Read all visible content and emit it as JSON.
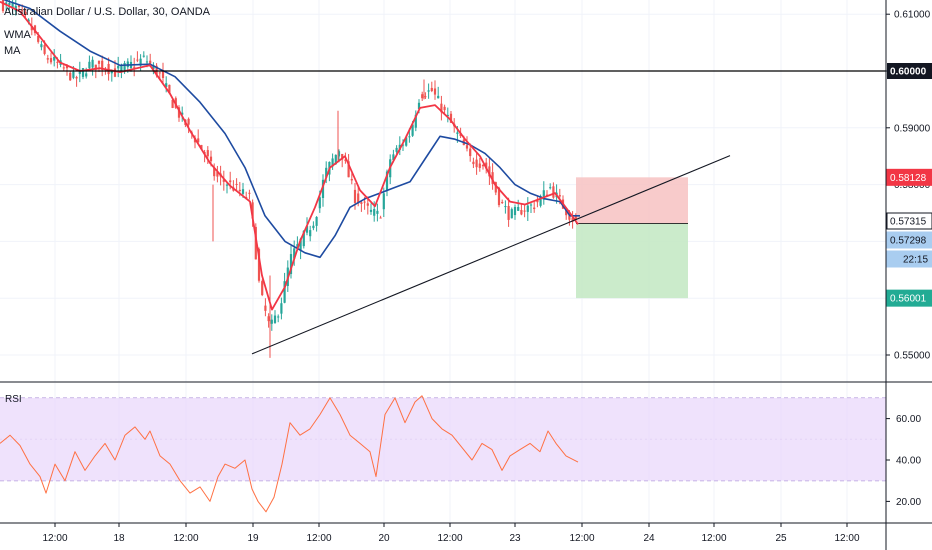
{
  "header": {
    "title": "Australian Dollar / U.S. Dollar, 30, OANDA",
    "indicator_1": "WMA",
    "indicator_2": "MA"
  },
  "rsi": {
    "label": "RSI"
  },
  "colors": {
    "bull": "#26a69a",
    "bear": "#ef5350",
    "wma": "#f23645",
    "ma": "#1e4ba1",
    "rsi_line": "#ff7043",
    "rsi_band": "#e9d8fb",
    "stop_zone": "#f7c2c2",
    "target_zone": "#c5e9c5",
    "axis_text": "#131722"
  },
  "chart_data": [
    {
      "type": "candlestick",
      "title": "Australian Dollar / U.S. Dollar, 30, OANDA",
      "price_axis": {
        "ylim": [
          0.5455,
          0.6125
        ],
        "ticks": [
          "0.61000",
          "0.60000",
          "0.59000",
          "0.58000",
          "0.57000",
          "0.56000",
          "0.55000"
        ]
      },
      "time_axis": {
        "ticks": [
          "12:00",
          "18",
          "12:00",
          "19",
          "12:00",
          "20",
          "12:00",
          "23",
          "12:00",
          "24",
          "12:00",
          "25",
          "12:00"
        ]
      },
      "horizontal_line": {
        "price": 0.6,
        "label": "0.60000"
      },
      "price_labels": [
        {
          "text": "0.58128",
          "price": 0.58128,
          "color": "#f23645"
        },
        {
          "text": "0.57315",
          "price": 0.57315,
          "color": "#131722"
        },
        {
          "text": "0.57298",
          "price": 0.57298,
          "color": "#4a90d9"
        },
        {
          "text": "22:15",
          "price": 0.5701,
          "color": "#4a90d9"
        },
        {
          "text": "0.56001",
          "price": 0.56001,
          "color": "#22ab94"
        }
      ],
      "trendline": {
        "from": {
          "x": 252,
          "price": 0.5502
        },
        "to": {
          "x": 730,
          "price": 0.5851
        }
      },
      "position": {
        "kind": "short",
        "entry": 0.57315,
        "stop": 0.58128,
        "target": 0.56001
      },
      "close_path": [
        [
          0,
          0.6118
        ],
        [
          15,
          0.6112
        ],
        [
          30,
          0.608
        ],
        [
          45,
          0.6025
        ],
        [
          60,
          0.601
        ],
        [
          75,
          0.5985
        ],
        [
          90,
          0.6012
        ],
        [
          105,
          0.6008
        ],
        [
          115,
          0.5998
        ],
        [
          130,
          0.601
        ],
        [
          145,
          0.6022
        ],
        [
          160,
          0.5992
        ],
        [
          175,
          0.5935
        ],
        [
          190,
          0.5895
        ],
        [
          205,
          0.5855
        ],
        [
          215,
          0.5815
        ],
        [
          230,
          0.58
        ],
        [
          250,
          0.5775
        ],
        [
          260,
          0.561
        ],
        [
          270,
          0.5545
        ],
        [
          280,
          0.5585
        ],
        [
          290,
          0.5668
        ],
        [
          300,
          0.5698
        ],
        [
          315,
          0.574
        ],
        [
          325,
          0.582
        ],
        [
          340,
          0.5865
        ],
        [
          355,
          0.5778
        ],
        [
          370,
          0.5752
        ],
        [
          380,
          0.5745
        ],
        [
          390,
          0.5845
        ],
        [
          400,
          0.5868
        ],
        [
          410,
          0.589
        ],
        [
          420,
          0.596
        ],
        [
          432,
          0.5965
        ],
        [
          445,
          0.5925
        ],
        [
          460,
          0.588
        ],
        [
          470,
          0.5845
        ],
        [
          485,
          0.5835
        ],
        [
          500,
          0.577
        ],
        [
          510,
          0.5745
        ],
        [
          520,
          0.5755
        ],
        [
          535,
          0.5765
        ],
        [
          550,
          0.5795
        ],
        [
          560,
          0.577
        ],
        [
          570,
          0.5745
        ],
        [
          578,
          0.573
        ]
      ],
      "wma_path": [
        [
          0,
          0.6122
        ],
        [
          20,
          0.6105
        ],
        [
          40,
          0.606
        ],
        [
          60,
          0.6015
        ],
        [
          80,
          0.6
        ],
        [
          100,
          0.6005
        ],
        [
          120,
          0.5998
        ],
        [
          150,
          0.601
        ],
        [
          170,
          0.596
        ],
        [
          190,
          0.5895
        ],
        [
          210,
          0.5838
        ],
        [
          230,
          0.5798
        ],
        [
          250,
          0.577
        ],
        [
          262,
          0.564
        ],
        [
          272,
          0.558
        ],
        [
          285,
          0.562
        ],
        [
          300,
          0.57
        ],
        [
          315,
          0.576
        ],
        [
          330,
          0.583
        ],
        [
          345,
          0.585
        ],
        [
          360,
          0.579
        ],
        [
          375,
          0.5762
        ],
        [
          390,
          0.583
        ],
        [
          405,
          0.588
        ],
        [
          420,
          0.5935
        ],
        [
          435,
          0.594
        ],
        [
          450,
          0.5915
        ],
        [
          465,
          0.588
        ],
        [
          480,
          0.585
        ],
        [
          495,
          0.58
        ],
        [
          510,
          0.577
        ],
        [
          525,
          0.5765
        ],
        [
          540,
          0.5775
        ],
        [
          555,
          0.5785
        ],
        [
          570,
          0.575
        ],
        [
          578,
          0.573
        ]
      ],
      "ma_path": [
        [
          0,
          0.6128
        ],
        [
          30,
          0.611
        ],
        [
          60,
          0.607
        ],
        [
          90,
          0.6035
        ],
        [
          120,
          0.601
        ],
        [
          150,
          0.6012
        ],
        [
          175,
          0.599
        ],
        [
          200,
          0.5945
        ],
        [
          225,
          0.589
        ],
        [
          245,
          0.583
        ],
        [
          265,
          0.5745
        ],
        [
          285,
          0.57
        ],
        [
          305,
          0.568
        ],
        [
          320,
          0.5672
        ],
        [
          335,
          0.571
        ],
        [
          350,
          0.576
        ],
        [
          365,
          0.5775
        ],
        [
          380,
          0.5785
        ],
        [
          395,
          0.5795
        ],
        [
          410,
          0.5805
        ],
        [
          425,
          0.5845
        ],
        [
          440,
          0.5885
        ],
        [
          455,
          0.588
        ],
        [
          470,
          0.587
        ],
        [
          485,
          0.5855
        ],
        [
          500,
          0.583
        ],
        [
          515,
          0.58
        ],
        [
          530,
          0.5785
        ],
        [
          545,
          0.5775
        ],
        [
          560,
          0.577
        ],
        [
          570,
          0.5745
        ],
        [
          580,
          0.5745
        ]
      ]
    },
    {
      "type": "line",
      "title": "RSI",
      "ylim": [
        8,
        78
      ],
      "y_ticks": [
        "60.00",
        "40.00",
        "20.00"
      ],
      "band": [
        30,
        70
      ],
      "values_path": [
        [
          0,
          48
        ],
        [
          10,
          52
        ],
        [
          20,
          47
        ],
        [
          30,
          38
        ],
        [
          40,
          32
        ],
        [
          46,
          24
        ],
        [
          55,
          38
        ],
        [
          65,
          30
        ],
        [
          75,
          44
        ],
        [
          85,
          35
        ],
        [
          95,
          42
        ],
        [
          105,
          48
        ],
        [
          115,
          40
        ],
        [
          125,
          52
        ],
        [
          135,
          56
        ],
        [
          145,
          50
        ],
        [
          150,
          54
        ],
        [
          160,
          42
        ],
        [
          170,
          38
        ],
        [
          180,
          30
        ],
        [
          190,
          24
        ],
        [
          200,
          27
        ],
        [
          210,
          20
        ],
        [
          218,
          32
        ],
        [
          225,
          38
        ],
        [
          235,
          36
        ],
        [
          245,
          40
        ],
        [
          252,
          26
        ],
        [
          258,
          20
        ],
        [
          266,
          15
        ],
        [
          274,
          22
        ],
        [
          282,
          38
        ],
        [
          290,
          58
        ],
        [
          300,
          52
        ],
        [
          310,
          55
        ],
        [
          320,
          62
        ],
        [
          330,
          70
        ],
        [
          340,
          62
        ],
        [
          350,
          52
        ],
        [
          360,
          48
        ],
        [
          370,
          44
        ],
        [
          376,
          32
        ],
        [
          385,
          62
        ],
        [
          395,
          70
        ],
        [
          405,
          58
        ],
        [
          415,
          68
        ],
        [
          422,
          71
        ],
        [
          432,
          60
        ],
        [
          442,
          55
        ],
        [
          452,
          52
        ],
        [
          462,
          46
        ],
        [
          472,
          40
        ],
        [
          482,
          48
        ],
        [
          492,
          45
        ],
        [
          502,
          35
        ],
        [
          510,
          42
        ],
        [
          520,
          45
        ],
        [
          530,
          48
        ],
        [
          540,
          44
        ],
        [
          548,
          54
        ],
        [
          556,
          48
        ],
        [
          566,
          42
        ],
        [
          578,
          39
        ]
      ]
    }
  ]
}
